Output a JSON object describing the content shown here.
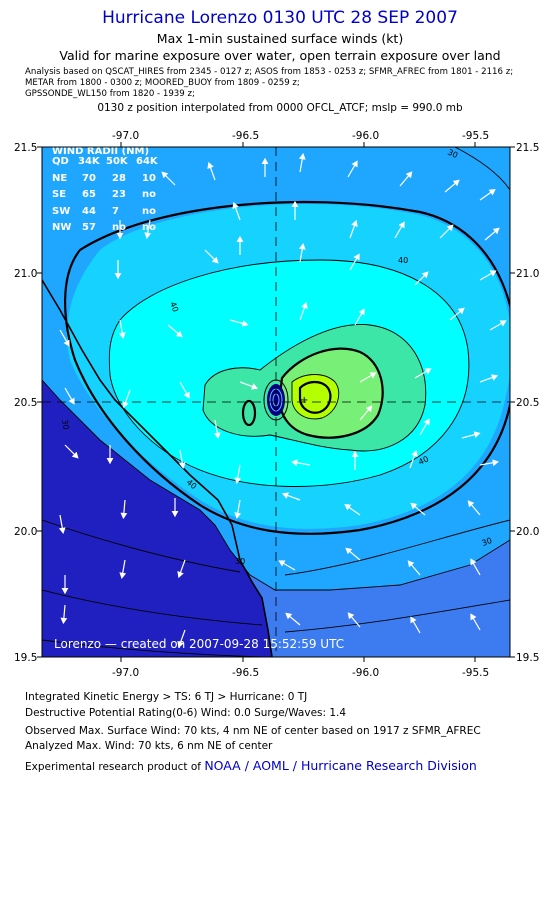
{
  "header": {
    "title": "Hurricane Lorenzo 0130 UTC 28 SEP 2007",
    "subtitle1": "Max 1-min sustained surface winds (kt)",
    "subtitle2": "Valid for marine exposure over water, open terrain exposure over land",
    "analysis_lines": [
      "Analysis based on   QSCAT_HIRES from 2345 - 0127 z;  ASOS from 1853 - 0253 z;  SFMR_AFREC from 1801 - 2116 z;",
      "METAR from 1800 - 0300 z;  MOORED_BUOY from 1809 - 0259 z;",
      "GPSSONDE_WL150 from 1820 - 1939 z;"
    ],
    "position_note": "0130 z position interpolated from 0000 OFCL_ATCF; mslp = 990.0 mb"
  },
  "map": {
    "lon_ticks": [
      "-97.0",
      "-96.5",
      "-96.0",
      "-95.5"
    ],
    "lat_ticks": [
      "21.5",
      "21.0",
      "20.5",
      "20.0",
      "19.5"
    ],
    "wind_radii": {
      "title": "WIND RADII (NM)",
      "header": [
        "QD",
        "34K",
        "50K",
        "64K"
      ],
      "rows": [
        [
          "NE",
          "70",
          "28",
          "10"
        ],
        [
          "SE",
          "65",
          "23",
          "no"
        ],
        [
          "SW",
          "44",
          "7",
          "no"
        ],
        [
          "NW",
          "57",
          "no",
          "no"
        ]
      ]
    },
    "contour_labels": [
      "30",
      "40",
      "40",
      "40",
      "30",
      "30",
      "30",
      "40"
    ],
    "credit": "Lorenzo — created on 2007-09-28 15:52:59 UTC",
    "colors": {
      "land": "#2020c0",
      "lt10": "#3c7cf0",
      "c20": "#1fa6ff",
      "c30": "#16d2ff",
      "c40": "#00ffff",
      "c50": "#3be6a6",
      "c60": "#78f078",
      "c70": "#b4ff00",
      "center": "#000080"
    }
  },
  "footer": {
    "ike_line": "Integrated Kinetic Energy > TS: 6 TJ   > Hurricane: 0 TJ",
    "dpr_line": "Destructive Potential Rating(0-6)   Wind: 0.0 Surge/Waves: 1.4",
    "observed_line": "Observed Max. Surface Wind: 70 kts, 4 nm NE of center based on 1917 z SFMR_AFREC",
    "analyzed_line": "Analyzed Max. Wind: 70 kts, 6 nm NE of center",
    "product_prefix": "Experimental research product of",
    "product_link": "NOAA / AOML / Hurricane Research Division"
  }
}
